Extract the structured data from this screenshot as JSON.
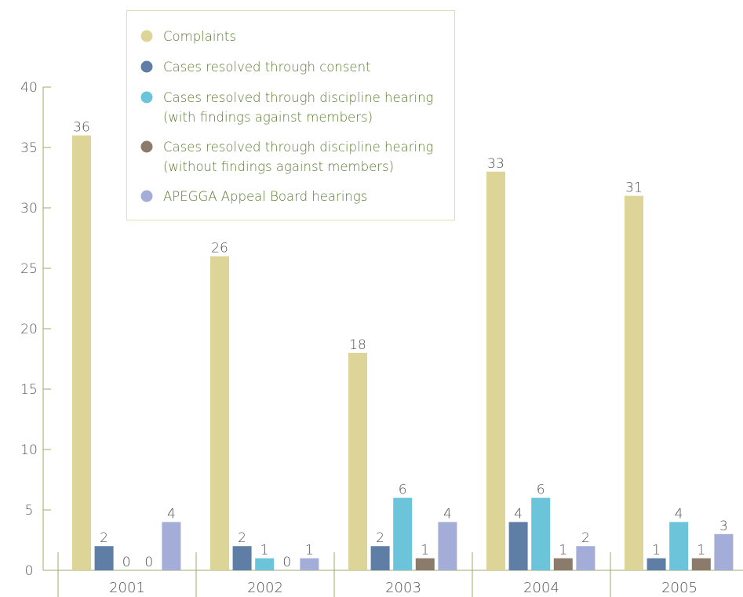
{
  "chart_data": {
    "type": "bar",
    "categories": [
      "2001",
      "2002",
      "2003",
      "2004",
      "2005"
    ],
    "series": [
      {
        "name": "Complaints",
        "color": "#ddd597",
        "values": [
          36,
          26,
          18,
          33,
          31
        ]
      },
      {
        "name": "Cases resolved through consent",
        "color": "#5f7ea6",
        "values": [
          2,
          2,
          2,
          4,
          1
        ]
      },
      {
        "name": "Cases resolved through discipline hearing (with findings against members)",
        "color": "#6bc4da",
        "values": [
          0,
          1,
          6,
          6,
          4
        ]
      },
      {
        "name": "Cases resolved through discipline hearing (without findings against members)",
        "color": "#8b7b6a",
        "values": [
          0,
          0,
          1,
          1,
          1
        ]
      },
      {
        "name": "APEGGA Appeal Board hearings",
        "color": "#a3add8",
        "values": [
          4,
          1,
          4,
          2,
          3
        ]
      }
    ],
    "legend_lines": [
      [
        "Complaints"
      ],
      [
        "Cases resolved through consent"
      ],
      [
        "Cases resolved through discipline hearing",
        "(with findings against members)"
      ],
      [
        "Cases resolved through discipline hearing",
        "(without findings against members)"
      ],
      [
        "APEGGA Appeal Board hearings"
      ]
    ],
    "yticks": [
      "0",
      "5",
      "10",
      "15",
      "20",
      "25",
      "30",
      "35",
      "40"
    ],
    "ylim": [
      0,
      40
    ],
    "grid": false,
    "legend_position": "top-center",
    "title": "",
    "xlabel": "",
    "ylabel": ""
  }
}
